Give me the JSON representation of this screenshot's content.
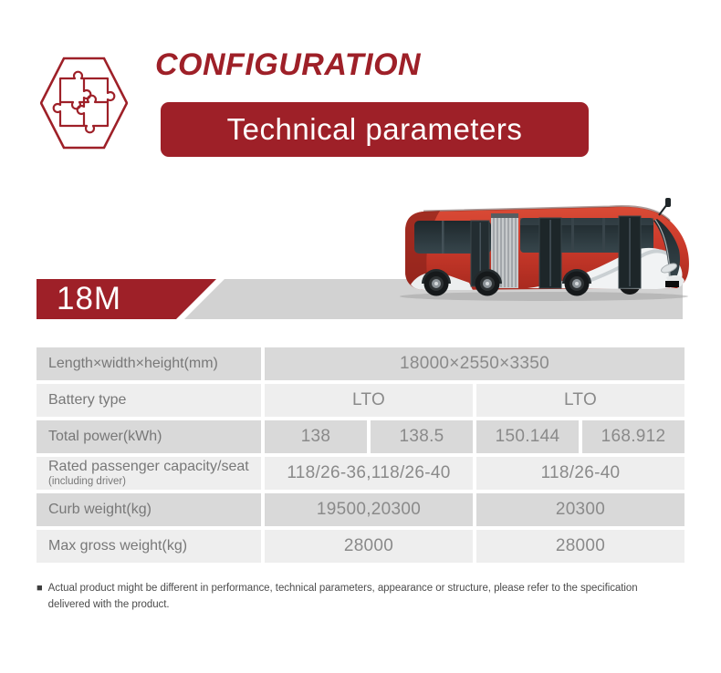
{
  "header": {
    "title": "CONFIGURATION",
    "banner_label": "Technical parameters"
  },
  "model": {
    "badge": "18M"
  },
  "icons": {
    "hex_puzzle": "puzzle-hexagon-icon",
    "bus": "articulated-bus-illustration"
  },
  "colors": {
    "accent_red": "#9e2028",
    "strip_gray": "#d2d2d2",
    "row_dark": "#d9d9d9",
    "row_light": "#eeeeee",
    "table_text": "#8a8a8a",
    "label_text": "#787878",
    "bus_red": "#cb3a2b"
  },
  "table": {
    "rows": [
      {
        "label": "Length×width×height(mm)",
        "sublabel": "",
        "values": [
          {
            "text": "18000×2550×3350",
            "span": 4
          }
        ]
      },
      {
        "label": "Battery type",
        "sublabel": "",
        "values": [
          {
            "text": "LTO",
            "span": 2
          },
          {
            "text": "LTO",
            "span": 2
          }
        ]
      },
      {
        "label": "Total power(kWh)",
        "sublabel": "",
        "values": [
          {
            "text": "138",
            "span": 1
          },
          {
            "text": "138.5",
            "span": 1
          },
          {
            "text": "150.144",
            "span": 1
          },
          {
            "text": "168.912",
            "span": 1
          }
        ]
      },
      {
        "label": "Rated passenger capacity/seat",
        "sublabel": "(including driver)",
        "values": [
          {
            "text": "118/26-36,118/26-40",
            "span": 2
          },
          {
            "text": "118/26-40",
            "span": 2
          }
        ]
      },
      {
        "label": "Curb weight(kg)",
        "sublabel": "",
        "values": [
          {
            "text": "19500,20300",
            "span": 2
          },
          {
            "text": "20300",
            "span": 2
          }
        ]
      },
      {
        "label": "Max gross weight(kg)",
        "sublabel": "",
        "values": [
          {
            "text": "28000",
            "span": 2
          },
          {
            "text": "28000",
            "span": 2
          }
        ]
      }
    ]
  },
  "footnote": {
    "bullet": "■",
    "text": "Actual product might be different in performance, technical parameters, appearance or structure, please refer to the specification delivered with the product."
  }
}
